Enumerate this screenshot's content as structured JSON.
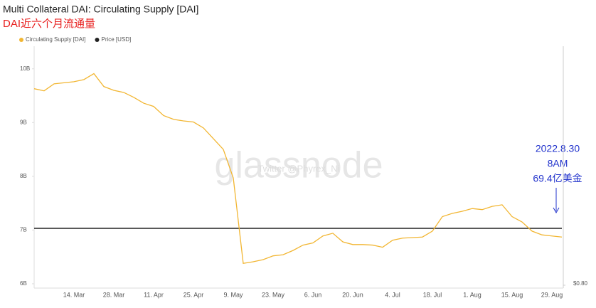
{
  "chart_data": {
    "type": "line",
    "title": "Multi Collateral DAI: Circulating Supply [DAI]",
    "subtitle": "DAI近六个月流通量",
    "annotations": [
      "2022.8.30",
      "8AM",
      "69.4亿美金"
    ],
    "watermark": [
      "glassnode",
      "Twitter @Phyrex_Ni"
    ],
    "categories": [
      null,
      null,
      null,
      null,
      "14. Mar",
      null,
      null,
      null,
      "28. Mar",
      null,
      null,
      null,
      "11. Apr",
      null,
      null,
      null,
      "25. Apr",
      null,
      null,
      null,
      "9. May",
      null,
      null,
      null,
      "23. May",
      null,
      null,
      null,
      "6. Jun",
      null,
      null,
      null,
      "20. Jun",
      null,
      null,
      null,
      "4. Jul",
      null,
      null,
      null,
      "18. Jul",
      null,
      null,
      null,
      "1. Aug",
      null,
      null,
      null,
      "15. Aug",
      null,
      null,
      null,
      "29. Aug",
      null
    ],
    "series": [
      {
        "name": "Circulating Supply [DAI]",
        "color": "#f2b632",
        "values": [
          9.63,
          9.59,
          9.72,
          9.74,
          9.76,
          9.8,
          9.91,
          9.67,
          9.6,
          9.56,
          9.47,
          9.36,
          9.3,
          9.13,
          9.06,
          9.03,
          9.01,
          8.9,
          8.7,
          8.5,
          7.97,
          6.38,
          6.41,
          6.45,
          6.52,
          6.54,
          6.62,
          6.72,
          6.76,
          6.89,
          6.94,
          6.78,
          6.73,
          6.73,
          6.72,
          6.68,
          6.81,
          6.85,
          6.86,
          6.87,
          6.98,
          7.25,
          7.31,
          7.35,
          7.4,
          7.38,
          7.44,
          7.47,
          7.25,
          7.15,
          6.98,
          6.91,
          6.89,
          6.87
        ]
      },
      {
        "name": "Price [USD]",
        "color": "#222222",
        "axis": "y2",
        "values": [
          1,
          1,
          1,
          1,
          1,
          1,
          1,
          1,
          1,
          1,
          1,
          1,
          1,
          1,
          1,
          1,
          1,
          1,
          1,
          1,
          1,
          1,
          1,
          1,
          1,
          1,
          1,
          1,
          1,
          1,
          1,
          1,
          1,
          1,
          1,
          1,
          1,
          1,
          1,
          1,
          1,
          1,
          1,
          1,
          1,
          1,
          1,
          1,
          1,
          1,
          1,
          1,
          1,
          1
        ]
      }
    ],
    "ylim": [
      5.92,
      10.42
    ],
    "yticks": [
      {
        "value": 6,
        "label": "6B"
      },
      {
        "value": 7,
        "label": "7B"
      },
      {
        "value": 8,
        "label": "8B"
      },
      {
        "value": 9,
        "label": "9B"
      },
      {
        "value": 10,
        "label": "10B"
      }
    ],
    "y2lim": [
      0.79,
      1.64
    ],
    "y2ticks": [
      {
        "value": 0.8,
        "label": "$0.80"
      }
    ],
    "grid": false
  }
}
